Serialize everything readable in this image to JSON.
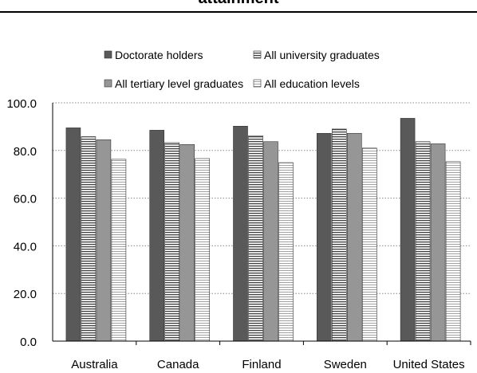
{
  "chart_data": {
    "type": "bar",
    "title": "attainment",
    "categories": [
      "Australia",
      "Canada",
      "Finland",
      "Sweden",
      "United States"
    ],
    "series": [
      {
        "name": "Doctorate holders",
        "values": [
          89.5,
          88.5,
          90.2,
          87.2,
          93.5
        ],
        "color": "#595959",
        "pattern": "solid"
      },
      {
        "name": "All university graduates",
        "values": [
          85.8,
          83.3,
          86.2,
          89.0,
          83.7
        ],
        "color": "#ffffff",
        "pattern": "horizontal-lines"
      },
      {
        "name": "All tertiary level graduates",
        "values": [
          84.5,
          82.5,
          83.7,
          87.2,
          82.8
        ],
        "color": "#969696",
        "pattern": "solid"
      },
      {
        "name": "All education levels",
        "values": [
          76.3,
          76.6,
          74.9,
          81.0,
          75.3
        ],
        "color": "#ffffff",
        "pattern": "fine-horizontal-lines"
      }
    ],
    "yticks": [
      "0.0",
      "20.0",
      "40.0",
      "60.0",
      "80.0",
      "100.0"
    ],
    "ylim": [
      0,
      100
    ],
    "grid": "horizontal dotted",
    "legend_position": "top"
  }
}
